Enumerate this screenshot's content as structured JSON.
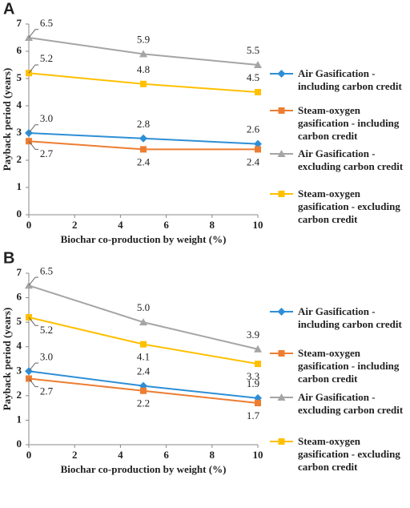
{
  "chart_data": [
    {
      "type": "line",
      "panel": "A",
      "xlabel": "Biochar co-production by weight (%)",
      "ylabel": "Payback period (years)",
      "x": [
        0,
        5,
        10
      ],
      "xlim": [
        0,
        10
      ],
      "xticks": [
        0,
        2,
        4,
        6,
        8,
        10
      ],
      "ylim": [
        0,
        7
      ],
      "yticks": [
        0,
        1,
        2,
        3,
        4,
        5,
        6,
        7
      ],
      "series": [
        {
          "name": "Air Gasification - including carbon credit",
          "color": "#2e8fd6",
          "marker": "diamond",
          "values": [
            3.0,
            2.8,
            2.6
          ],
          "value_labels": [
            "3.0",
            "2.8",
            "2.6"
          ]
        },
        {
          "name": "Steam-oxygen gasification - including carbon credit",
          "color": "#ed7d31",
          "marker": "square",
          "values": [
            2.7,
            2.4,
            2.4
          ],
          "value_labels": [
            "2.7",
            "2.4",
            "2.4"
          ]
        },
        {
          "name": "Air Gasification - excluding carbon credit",
          "color": "#a5a5a5",
          "marker": "triangle",
          "values": [
            6.5,
            5.9,
            5.5
          ],
          "value_labels": [
            "6.5",
            "5.9",
            "5.5"
          ]
        },
        {
          "name": "Steam-oxygen gasification - excluding carbon credit",
          "color": "#ffc000",
          "marker": "square",
          "values": [
            5.2,
            4.8,
            4.5
          ],
          "value_labels": [
            "5.2",
            "4.8",
            "4.5"
          ]
        }
      ]
    },
    {
      "type": "line",
      "panel": "B",
      "xlabel": "Biochar co-production by weight (%)",
      "ylabel": "Payback period (years)",
      "x": [
        0,
        5,
        10
      ],
      "xlim": [
        0,
        10
      ],
      "xticks": [
        0,
        2,
        4,
        6,
        8,
        10
      ],
      "ylim": [
        0,
        7
      ],
      "yticks": [
        0,
        1,
        2,
        3,
        4,
        5,
        6,
        7
      ],
      "series": [
        {
          "name": "Air Gasification - including carbon credit",
          "color": "#2e8fd6",
          "marker": "diamond",
          "values": [
            3.0,
            2.4,
            1.9
          ],
          "value_labels": [
            "3.0",
            "2.4",
            "1.9"
          ]
        },
        {
          "name": "Steam-oxygen gasification - including carbon credit",
          "color": "#ed7d31",
          "marker": "square",
          "values": [
            2.7,
            2.2,
            1.7
          ],
          "value_labels": [
            "2.7",
            "2.2",
            "1.7"
          ]
        },
        {
          "name": "Air Gasification - excluding carbon credit",
          "color": "#a5a5a5",
          "marker": "triangle",
          "values": [
            6.5,
            5.0,
            3.9
          ],
          "value_labels": [
            "6.5",
            "5.0",
            "3.9"
          ]
        },
        {
          "name": "Steam-oxygen gasification - excluding carbon credit",
          "color": "#ffc000",
          "marker": "square",
          "values": [
            5.2,
            4.1,
            3.3
          ],
          "value_labels": [
            "5.2",
            "4.1",
            "3.3"
          ]
        }
      ]
    }
  ]
}
